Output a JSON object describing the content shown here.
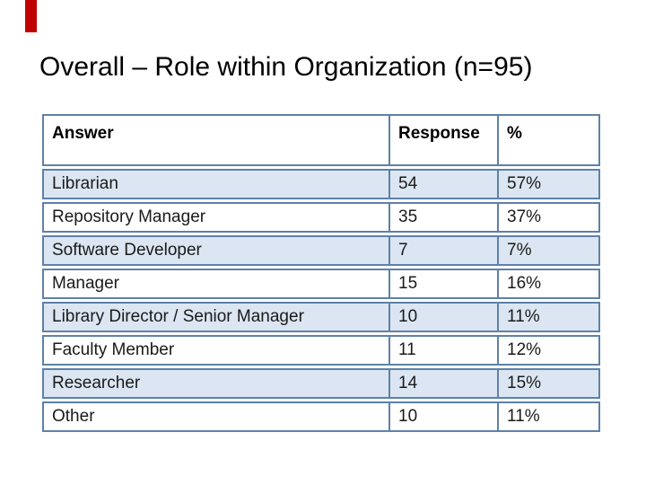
{
  "slide": {
    "title": "Overall – Role within Organization (n=95)"
  },
  "table": {
    "headers": {
      "answer": "Answer",
      "response": "Response",
      "percent": "%"
    },
    "rows": [
      {
        "answer": "Librarian",
        "response": "54",
        "percent": "57%"
      },
      {
        "answer": "Repository Manager",
        "response": "35",
        "percent": "37%"
      },
      {
        "answer": "Software Developer",
        "response": "7",
        "percent": "7%"
      },
      {
        "answer": "Manager",
        "response": "15",
        "percent": "16%"
      },
      {
        "answer": "Library Director / Senior Manager",
        "response": "10",
        "percent": "11%"
      },
      {
        "answer": "Faculty Member",
        "response": "11",
        "percent": "12%"
      },
      {
        "answer": "Researcher",
        "response": "14",
        "percent": "15%"
      },
      {
        "answer": "Other",
        "response": "10",
        "percent": "11%"
      }
    ]
  },
  "colors": {
    "accent_bar": "#c00000",
    "table_border": "#5e81a8",
    "banded_row_fill": "#dce6f2",
    "title_text": "#000000",
    "body_text": "#1a1a1a"
  }
}
